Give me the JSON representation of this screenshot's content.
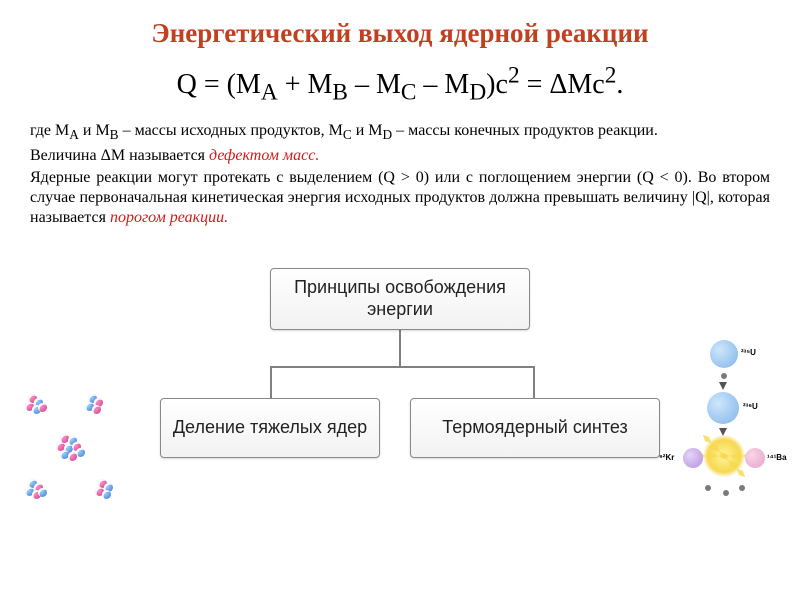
{
  "title": {
    "text": "Энергетический выход ядерной реакции",
    "color": "#c04020",
    "fontsize": 27
  },
  "formula": {
    "text_html": "Q = (M<sub>A</sub> + M<sub>B</sub> – M<sub>C</sub> – M<sub>D</sub>)c<sup>2</sup> = ΔMc<sup>2</sup>.",
    "fontsize": 28,
    "color": "#000000"
  },
  "paragraph1": {
    "pre": "где M",
    "s1": "A",
    "mid1": " и M",
    "s2": "B",
    "mid2": " – массы исходных продуктов, M",
    "s3": "C",
    "mid3": " и M",
    "s4": "D",
    "tail": " – массы конечных продуктов реакции.",
    "fontsize": 16,
    "color": "#000000"
  },
  "defect_line": {
    "text": "Величина ΔM называется ",
    "term": "дефектом масс.",
    "term_color": "#d11a1a",
    "fontsize": 16
  },
  "paragraph2": {
    "text": "Ядерные реакции могут протекать с выделением (Q > 0) или с поглощением энергии (Q < 0). Во втором случае первоначальная кинетическая энергия исходных продуктов должна превышать величину |Q|, которая называется ",
    "term": "порогом реакции.",
    "term_color": "#d11a1a",
    "fontsize": 16,
    "color": "#000000"
  },
  "diagram": {
    "top": "Принципы освобождения энергии",
    "left": "Деление тяжелых ядер",
    "right": "Термоядерный синтез",
    "box_bg_from": "#ffffff",
    "box_bg_to": "#f2f2f2",
    "box_border": "#888888",
    "connector_color": "#808080",
    "label_fontsize": 18
  },
  "right_graphic": {
    "u235": "²³⁵U",
    "u236": "²³⁶U",
    "kr92": "⁹²Kr",
    "ba141": "¹⁴¹Ba",
    "u_color": "#7fb4e8",
    "kr_color": "#b68fe0",
    "ba_color": "#e8a0c8"
  },
  "colors": {
    "background": "#ffffff",
    "proton": "#d13a8a",
    "neutron_blue": "#3b7bd1"
  }
}
